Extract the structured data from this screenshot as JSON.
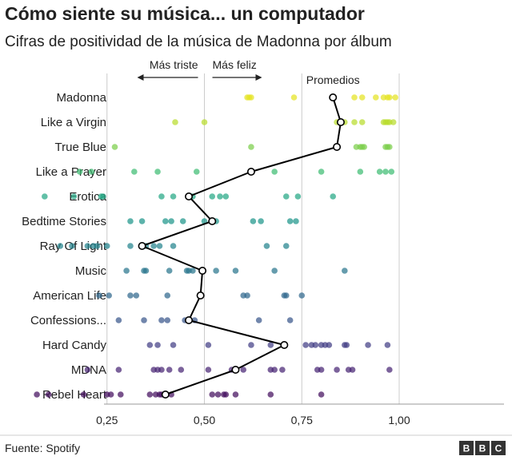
{
  "colors": {
    "grid": "#cccccc",
    "axis": "#999999",
    "avg_line": "#000000",
    "avg_fill": "#ffffff",
    "bbc_box": "#333333"
  },
  "chart_data": {
    "type": "scatter",
    "title": "Cómo siente su música... un computador",
    "subtitle": "Cifras de positividad de la música de Madonna por álbum",
    "xlim": [
      0,
      1
    ],
    "x_ticks": [
      0.25,
      0.5,
      0.75,
      1.0
    ],
    "x_tick_labels": [
      "0,25",
      "0,50",
      "0,75",
      "1,00"
    ],
    "grid": true,
    "annotations": {
      "sadder": "Más triste",
      "happier": "Más feliz",
      "averages": "Promedios"
    },
    "albums": [
      {
        "label": "Madonna",
        "color": "#e5e322",
        "average": 0.83,
        "points": [
          0.61,
          0.615,
          0.62,
          0.73,
          0.885,
          0.905,
          0.94,
          0.96,
          0.97,
          0.975,
          0.99
        ]
      },
      {
        "label": "Like a Virgin",
        "color": "#b9dc2d",
        "average": 0.85,
        "points": [
          0.425,
          0.5,
          0.84,
          0.86,
          0.885,
          0.905,
          0.96,
          0.965,
          0.97,
          0.975,
          0.985
        ]
      },
      {
        "label": "True Blue",
        "color": "#7cce4b",
        "average": 0.84,
        "points": [
          0.27,
          0.62,
          0.89,
          0.9,
          0.905,
          0.91,
          0.965,
          0.97,
          0.975
        ]
      },
      {
        "label": "Like a Prayer",
        "color": "#3fbc73",
        "average": 0.62,
        "points": [
          0.18,
          0.21,
          0.32,
          0.38,
          0.48,
          0.68,
          0.8,
          0.9,
          0.95,
          0.965,
          0.98
        ]
      },
      {
        "label": "Erotica",
        "color": "#25a885",
        "average": 0.46,
        "points": [
          0.09,
          0.165,
          0.235,
          0.24,
          0.39,
          0.42,
          0.47,
          0.52,
          0.54,
          0.555,
          0.71,
          0.74,
          0.83
        ]
      },
      {
        "label": "Bedtime Stories",
        "color": "#1f958b",
        "average": 0.52,
        "points": [
          0.31,
          0.34,
          0.4,
          0.415,
          0.445,
          0.5,
          0.53,
          0.625,
          0.645,
          0.72,
          0.735
        ]
      },
      {
        "label": "Ray Of Light",
        "color": "#24848e",
        "average": 0.34,
        "points": [
          0.13,
          0.16,
          0.2,
          0.215,
          0.225,
          0.25,
          0.31,
          0.35,
          0.37,
          0.385,
          0.42,
          0.66,
          0.71
        ]
      },
      {
        "label": "Music",
        "color": "#2a768e",
        "average": 0.495,
        "points": [
          0.3,
          0.345,
          0.35,
          0.41,
          0.455,
          0.46,
          0.47,
          0.53,
          0.58,
          0.68,
          0.86
        ]
      },
      {
        "label": "American Life",
        "color": "#31688e",
        "average": 0.49,
        "points": [
          0.23,
          0.255,
          0.31,
          0.325,
          0.405,
          0.6,
          0.61,
          0.705,
          0.71,
          0.75
        ]
      },
      {
        "label": "Confessions...",
        "color": "#3a578c",
        "average": 0.46,
        "points": [
          0.28,
          0.345,
          0.39,
          0.405,
          0.45,
          0.46,
          0.475,
          0.64,
          0.72
        ]
      },
      {
        "label": "Hard Candy",
        "color": "#433e85",
        "average": 0.705,
        "points": [
          0.36,
          0.38,
          0.42,
          0.51,
          0.62,
          0.67,
          0.76,
          0.775,
          0.785,
          0.8,
          0.81,
          0.82,
          0.86,
          0.865,
          0.92,
          0.97
        ]
      },
      {
        "label": "MDNA",
        "color": "#482575",
        "average": 0.58,
        "points": [
          0.2,
          0.28,
          0.37,
          0.38,
          0.39,
          0.41,
          0.44,
          0.51,
          0.57,
          0.6,
          0.67,
          0.68,
          0.7,
          0.79,
          0.8,
          0.84,
          0.87,
          0.88,
          0.975
        ]
      },
      {
        "label": "Rebel Heart",
        "color": "#440f5e",
        "average": 0.4,
        "points": [
          0.07,
          0.1,
          0.19,
          0.25,
          0.26,
          0.285,
          0.36,
          0.375,
          0.385,
          0.39,
          0.4,
          0.415,
          0.52,
          0.535,
          0.55,
          0.555,
          0.58,
          0.67,
          0.8
        ]
      }
    ]
  },
  "footer": {
    "source": "Fuente: Spotify",
    "logo_letters": [
      "B",
      "B",
      "C"
    ]
  }
}
